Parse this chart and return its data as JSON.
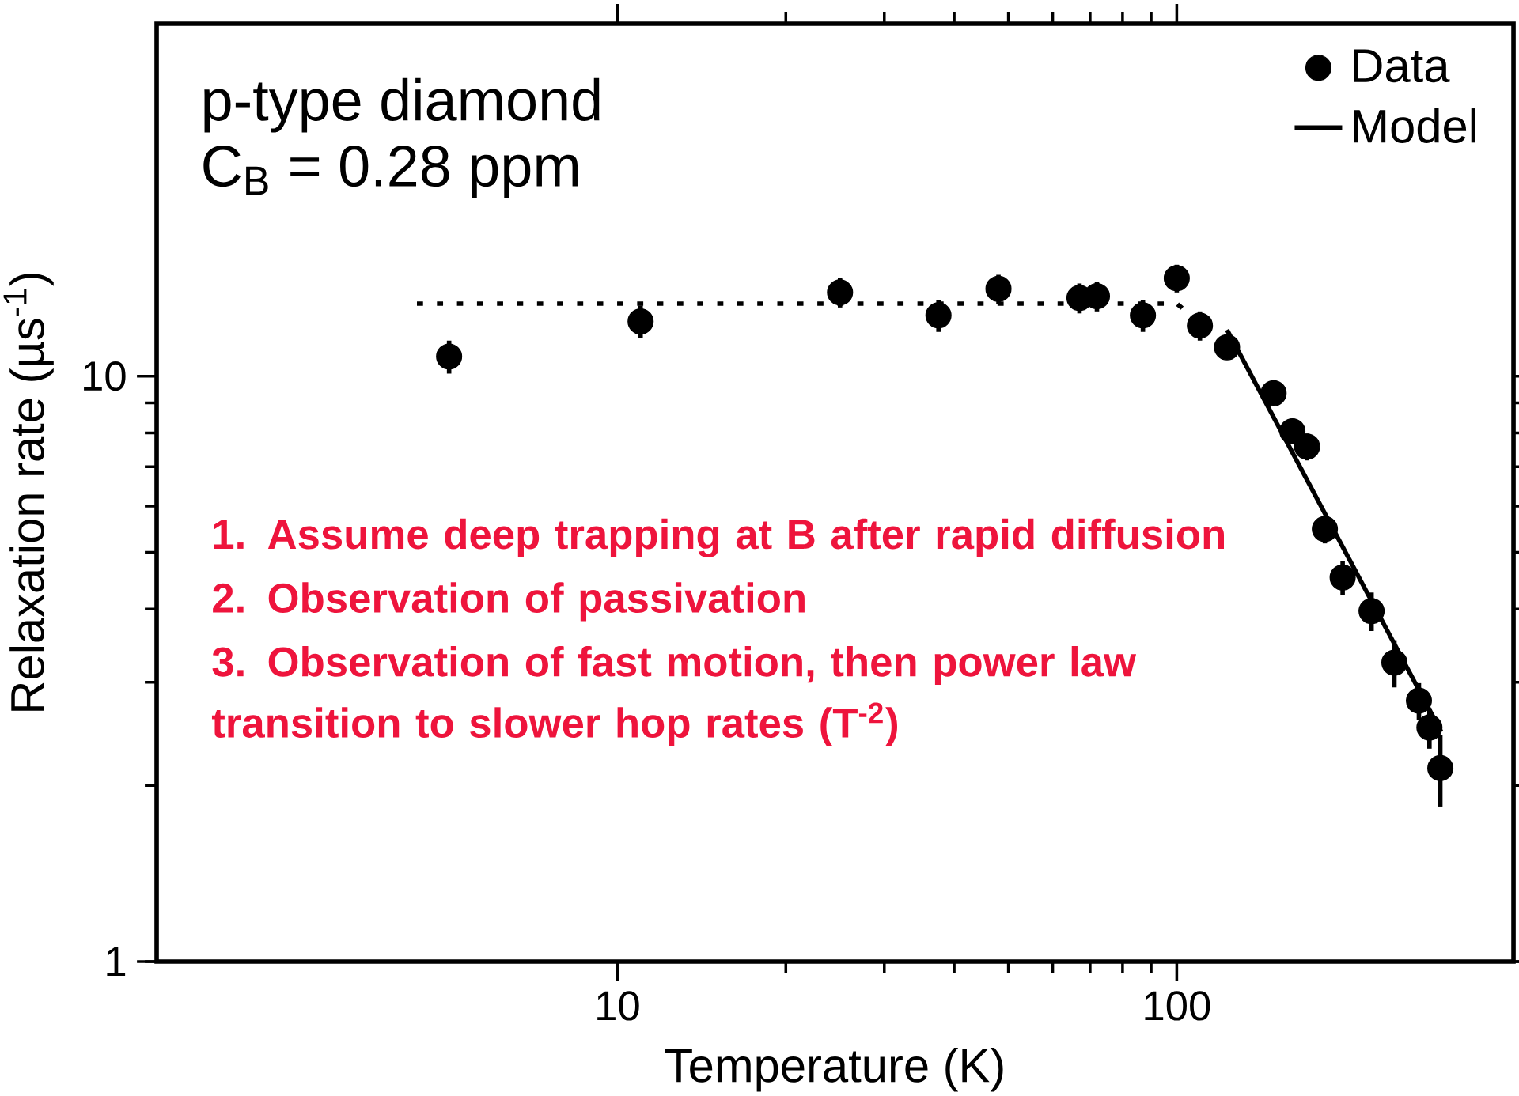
{
  "chart_data": {
    "type": "scatter",
    "xlabel": "Temperature (K)",
    "ylabel": "Relaxation rate (µs$^{-1}$)",
    "log": "xy",
    "xlim": [
      1.5,
      400
    ],
    "ylim": [
      1,
      40
    ],
    "xticks": [
      10,
      100
    ],
    "yticks": [
      1,
      10
    ],
    "grid": false,
    "legend": "top right",
    "series": [
      {
        "name": "Data",
        "marker": "circle",
        "color": "#000000",
        "x": [
          5,
          11,
          25,
          37.5,
          48,
          67,
          72,
          87,
          100,
          110,
          123,
          149,
          161,
          171,
          184,
          198,
          223,
          245,
          271,
          283,
          296
        ],
        "values": [
          10.8,
          12.4,
          13.9,
          12.7,
          14.1,
          13.6,
          13.7,
          12.7,
          14.7,
          12.2,
          11.2,
          9.35,
          8.05,
          7.58,
          5.48,
          4.53,
          3.97,
          3.24,
          2.79,
          2.51,
          2.14
        ],
        "errors": [
          0.7,
          0.8,
          0.8,
          0.8,
          0.8,
          0.8,
          0.8,
          0.8,
          0.8,
          0.7,
          0.5,
          0.4,
          0.4,
          0.4,
          0.3,
          0.3,
          0.3,
          0.3,
          0.2,
          0.2,
          0.3
        ]
      },
      {
        "name": "Model",
        "type": "line",
        "line_style": "solid",
        "color": "#000000",
        "x": [
          123,
          297
        ],
        "values": [
          12.0,
          2.47
        ]
      },
      {
        "type": "line",
        "line_style": "dotted",
        "color": "#000000",
        "x": [
          4.38,
          100,
          105
        ],
        "values": [
          13.3,
          13.3,
          12.8
        ]
      }
    ],
    "annotations": [
      "p-type diamond",
      "C$_{B}$ = 0.28 ppm",
      "1. Assume deep trapping at B after rapid diffusion",
      "2. Observation of passivation",
      "3. Observation of fast motion, then power law transition to slower hop rates (T$^{-2}$)"
    ]
  }
}
